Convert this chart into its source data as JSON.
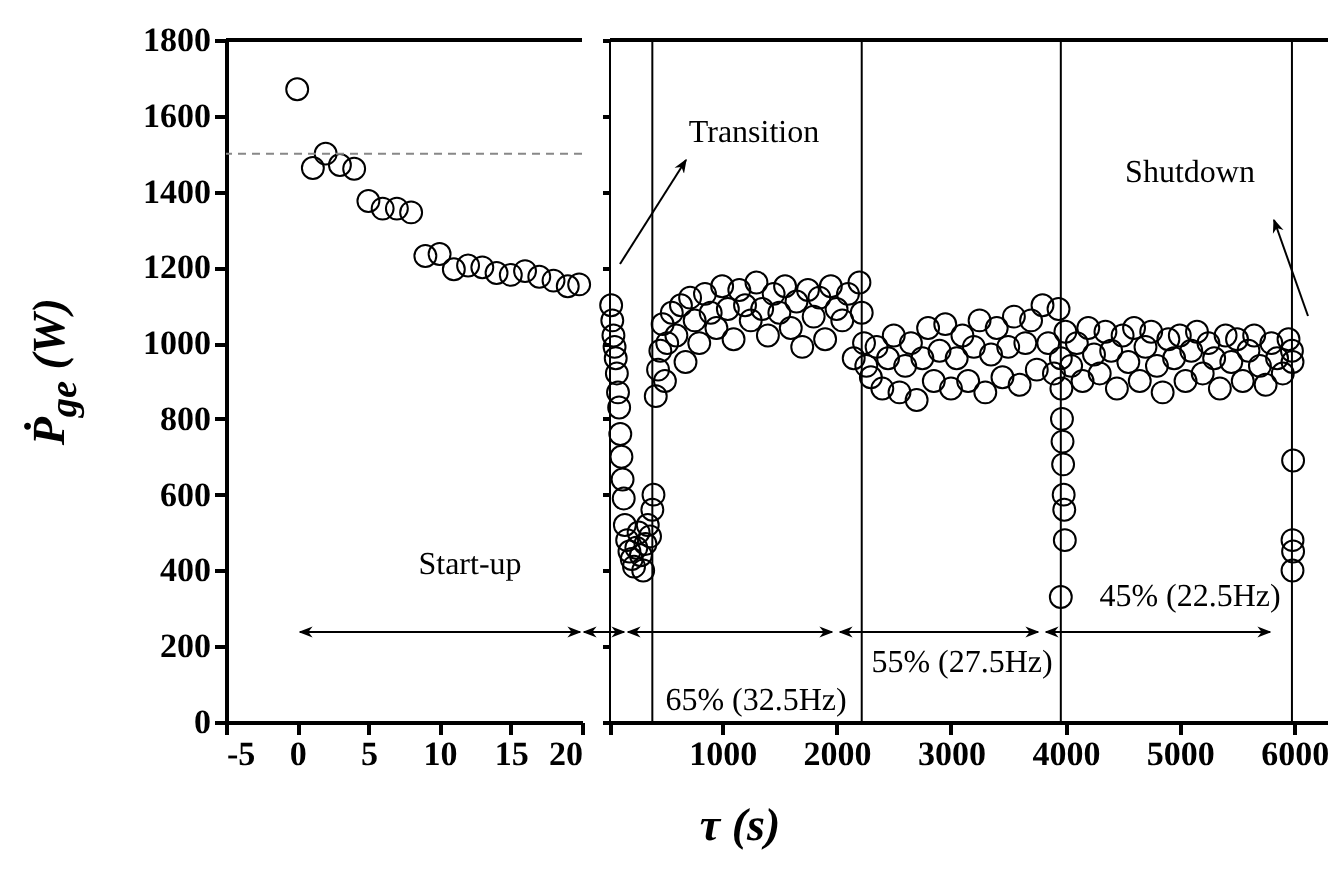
{
  "chart_data": [
    {
      "type": "scatter",
      "ylabel": "Ṗ$_{ge}$ (W)",
      "xlim": [
        -5,
        20
      ],
      "xticks": [
        -5,
        0,
        5,
        10,
        15,
        20
      ],
      "ylim": [
        0,
        1800
      ],
      "yticks": [
        0,
        200,
        400,
        600,
        800,
        1000,
        1200,
        1400,
        1600,
        1800
      ],
      "marker": "circle",
      "grid": false,
      "x": [
        0,
        1.1,
        2,
        3,
        4,
        5,
        6,
        7,
        8,
        9,
        10,
        11,
        12,
        13,
        14,
        15,
        16,
        17,
        18,
        19,
        19.8
      ],
      "series": [
        {
          "color": "#000000",
          "values": [
            1670,
            1462,
            1500,
            1470,
            1460,
            1375,
            1355,
            1355,
            1345,
            1230,
            1235,
            1195,
            1205,
            1200,
            1185,
            1180,
            1190,
            1175,
            1165,
            1150,
            1155
          ]
        }
      ],
      "ref_lines": [
        {
          "axis": "y",
          "value": 1500,
          "line_style": "dashed",
          "color": "#888888"
        }
      ],
      "annotations": [
        "Start-up"
      ]
    },
    {
      "type": "scatter",
      "xlabel": "τ (s)",
      "xlim": [
        20,
        6400
      ],
      "xticks": [
        {
          "value": 20,
          "label": null
        },
        1000,
        2000,
        3000,
        4000,
        5000,
        6000
      ],
      "ylim": [
        0,
        1800
      ],
      "yticks": [
        0,
        200,
        400,
        600,
        800,
        1000,
        1200,
        1400,
        1600,
        1800
      ],
      "tick_labels": "x",
      "marker": "circle",
      "grid": false,
      "x": [
        30,
        40,
        50,
        60,
        70,
        80,
        90,
        100,
        110,
        120,
        130,
        140,
        150,
        170,
        190,
        210,
        230,
        250,
        270,
        290,
        310,
        330,
        350,
        370,
        390,
        400,
        420,
        440,
        460,
        480,
        500,
        520,
        560,
        600,
        640,
        680,
        720,
        760,
        800,
        850,
        900,
        950,
        1000,
        1050,
        1100,
        1150,
        1200,
        1250,
        1300,
        1350,
        1400,
        1450,
        1500,
        1550,
        1600,
        1650,
        1700,
        1750,
        1800,
        1850,
        1900,
        1950,
        2000,
        2050,
        2100,
        2150,
        2200,
        2220,
        2240,
        2260,
        2300,
        2350,
        2400,
        2450,
        2500,
        2550,
        2600,
        2650,
        2700,
        2750,
        2800,
        2850,
        2900,
        2950,
        3000,
        3050,
        3100,
        3150,
        3200,
        3250,
        3300,
        3350,
        3400,
        3450,
        3500,
        3550,
        3600,
        3650,
        3700,
        3750,
        3800,
        3850,
        3900,
        3940,
        3960,
        3965,
        3970,
        3975,
        3980,
        3985,
        3990,
        3995,
        3960,
        4000,
        4050,
        4100,
        4150,
        4200,
        4250,
        4300,
        4350,
        4400,
        4450,
        4500,
        4550,
        4600,
        4650,
        4700,
        4750,
        4800,
        4850,
        4900,
        4950,
        5000,
        5050,
        5100,
        5150,
        5200,
        5250,
        5300,
        5350,
        5400,
        5450,
        5500,
        5550,
        5600,
        5650,
        5700,
        5750,
        5800,
        5850,
        5900,
        5950,
        5980,
        5985,
        5990,
        5985,
        5990,
        5985
      ],
      "series": [
        {
          "color": "#000000",
          "values": [
            1100,
            1060,
            1020,
            990,
            960,
            920,
            870,
            830,
            760,
            700,
            640,
            590,
            520,
            480,
            450,
            430,
            410,
            460,
            500,
            440,
            400,
            470,
            520,
            490,
            560,
            600,
            860,
            930,
            980,
            1050,
            900,
            1000,
            1080,
            1020,
            1100,
            950,
            1120,
            1060,
            1000,
            1130,
            1080,
            1040,
            1150,
            1090,
            1010,
            1140,
            1100,
            1060,
            1160,
            1090,
            1020,
            1130,
            1080,
            1150,
            1040,
            1110,
            990,
            1140,
            1070,
            1120,
            1010,
            1150,
            1090,
            1060,
            1130,
            960,
            1160,
            1080,
            1000,
            940,
            910,
            990,
            880,
            960,
            1020,
            870,
            940,
            1000,
            850,
            960,
            1040,
            900,
            980,
            1050,
            880,
            960,
            1020,
            900,
            990,
            1060,
            870,
            970,
            1040,
            910,
            990,
            1070,
            890,
            1000,
            1060,
            930,
            1100,
            1000,
            920,
            1090,
            960,
            880,
            800,
            740,
            680,
            600,
            560,
            480,
            330,
            1030,
            940,
            1000,
            900,
            1040,
            970,
            920,
            1030,
            980,
            880,
            1020,
            950,
            1040,
            900,
            990,
            1030,
            940,
            870,
            1010,
            960,
            1020,
            900,
            980,
            1030,
            920,
            1000,
            960,
            880,
            1020,
            950,
            1010,
            900,
            980,
            1020,
            940,
            890,
            1000,
            960,
            920,
            1010,
            980,
            950,
            690,
            480,
            450,
            400
          ]
        }
      ],
      "ref_lines": [
        {
          "axis": "x",
          "value": 20,
          "color": "#000000"
        },
        {
          "axis": "x",
          "value": 390,
          "color": "#000000"
        },
        {
          "axis": "x",
          "value": 2220,
          "color": "#000000"
        },
        {
          "axis": "x",
          "value": 3960,
          "color": "#000000"
        },
        {
          "axis": "x",
          "value": 5980,
          "color": "#000000"
        }
      ],
      "annotations": [
        "Transition",
        "Shutdown",
        "65% (32.5Hz)",
        "55% (27.5Hz)",
        "45% (22.5Hz)"
      ]
    }
  ]
}
